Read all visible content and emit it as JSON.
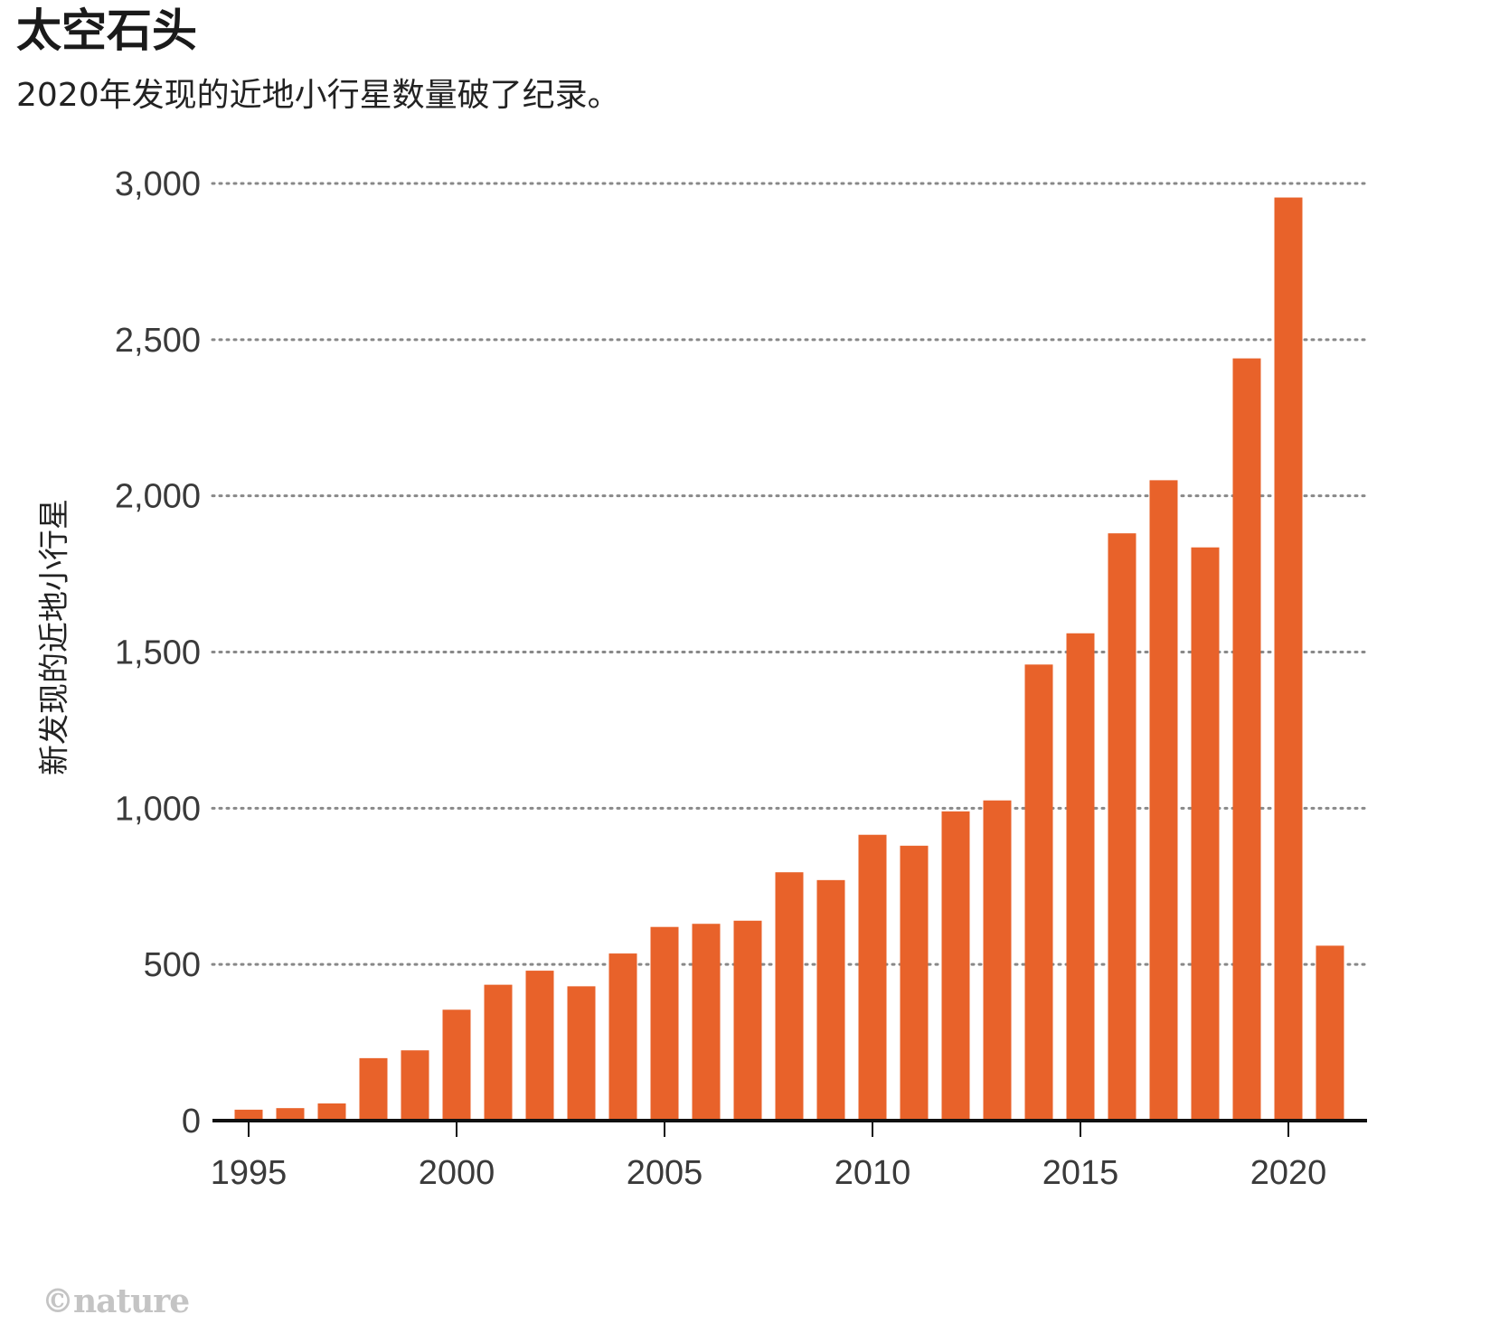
{
  "header": {
    "title": "太空石头",
    "subtitle": "2020年发现的近地小行星数量破了纪录。"
  },
  "credit": "©nature",
  "colors": {
    "bar": "#e8622a",
    "axis": "#111111",
    "grid": "#888888",
    "text": "#3a3a3a"
  },
  "chart_data": {
    "type": "bar",
    "ylabel": "新发现的近地小行星",
    "xlabel": "",
    "ylim": [
      0,
      3000
    ],
    "yticks": [
      0,
      500,
      1000,
      1500,
      2000,
      2500,
      3000
    ],
    "ytick_labels": [
      "0",
      "500",
      "1,000",
      "1,500",
      "2,000",
      "2,500",
      "3,000"
    ],
    "xticks": [
      1995,
      2000,
      2005,
      2010,
      2015,
      2020
    ],
    "xtick_labels": [
      "1995",
      "2000",
      "2005",
      "2010",
      "2015",
      "2020"
    ],
    "grid": "horizontal dotted",
    "categories": [
      1995,
      1996,
      1997,
      1998,
      1999,
      2000,
      2001,
      2002,
      2003,
      2004,
      2005,
      2006,
      2007,
      2008,
      2009,
      2010,
      2011,
      2012,
      2013,
      2014,
      2015,
      2016,
      2017,
      2018,
      2019,
      2020,
      2021
    ],
    "values": [
      35,
      40,
      55,
      200,
      225,
      355,
      435,
      480,
      430,
      535,
      620,
      630,
      640,
      795,
      770,
      915,
      880,
      990,
      1025,
      1460,
      1560,
      1880,
      2050,
      1835,
      2440,
      2955,
      560
    ]
  }
}
